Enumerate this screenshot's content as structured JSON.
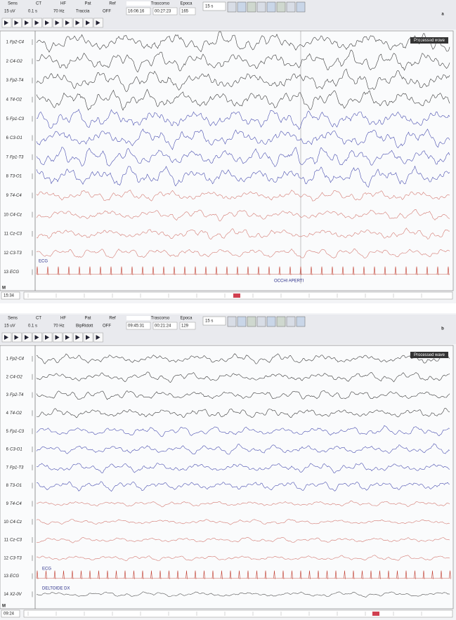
{
  "panels": [
    {
      "label": "a",
      "toolbar": {
        "headers": [
          "Sens",
          "CT",
          "HF",
          "Pat",
          "Ref",
          "Trascorso",
          "Epoca"
        ],
        "values": [
          "15 uV",
          "0.1 s",
          "70 Hz",
          "Traccia",
          "OFF",
          "16:06:16",
          "00:27:23",
          "165"
        ],
        "time_window": "15 s"
      },
      "channels": [
        {
          "number": "1",
          "name": "Fp2-C4"
        },
        {
          "number": "2",
          "name": "C4-O2"
        },
        {
          "number": "3",
          "name": "Fp2-T4"
        },
        {
          "number": "4",
          "name": "T4-O2"
        },
        {
          "number": "5",
          "name": "Fp1-C3"
        },
        {
          "number": "6",
          "name": "C3-O1"
        },
        {
          "number": "7",
          "name": "Fp1-T3"
        },
        {
          "number": "8",
          "name": "T3-O1"
        },
        {
          "number": "9",
          "name": "T4-C4"
        },
        {
          "number": "10",
          "name": "C4-Cz"
        },
        {
          "number": "11",
          "name": "Cz-C3"
        },
        {
          "number": "12",
          "name": "C3-T3"
        },
        {
          "number": "13",
          "name": "ECG"
        }
      ],
      "annotations": [
        "ECG",
        "OCCHI APERTI"
      ],
      "processed_label": "Processed wave",
      "footer_time": "15:34",
      "marker": "M"
    },
    {
      "label": "b",
      "toolbar": {
        "headers": [
          "Sens",
          "CT",
          "HF",
          "Pat",
          "Ref",
          "Trascorso",
          "Epoca"
        ],
        "values": [
          "15 uV",
          "0.1 s",
          "70 Hz",
          "BipRidott",
          "OFF",
          "09:45:31",
          "00:21:24",
          "129"
        ],
        "time_window": "15 s"
      },
      "channels": [
        {
          "number": "1",
          "name": "Fp2-C4"
        },
        {
          "number": "2",
          "name": "C4-O2"
        },
        {
          "number": "3",
          "name": "Fp2-T4"
        },
        {
          "number": "4",
          "name": "T4-O2"
        },
        {
          "number": "5",
          "name": "Fp1-C3"
        },
        {
          "number": "6",
          "name": "C3-O1"
        },
        {
          "number": "7",
          "name": "Fp1-T3"
        },
        {
          "number": "8",
          "name": "T3-O1"
        },
        {
          "number": "9",
          "name": "T4-C4"
        },
        {
          "number": "10",
          "name": "C4-Cz"
        },
        {
          "number": "11",
          "name": "Cz-C3"
        },
        {
          "number": "12",
          "name": "C3-T3"
        },
        {
          "number": "13",
          "name": "ECG"
        },
        {
          "number": "14",
          "name": "X2-0V"
        }
      ],
      "annotations": [
        "ECG",
        "DELTOIDE DX"
      ],
      "processed_label": "Processed wave",
      "footer_time": "09:24",
      "marker": "M"
    }
  ]
}
